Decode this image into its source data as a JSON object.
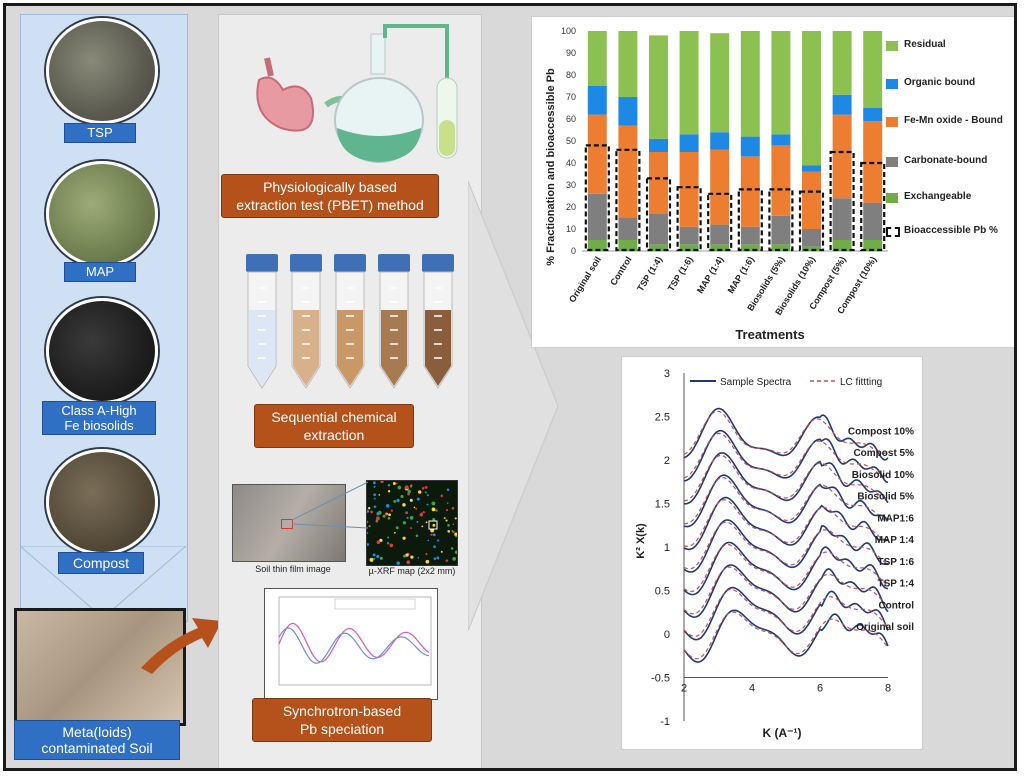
{
  "materials": {
    "tsp": "TSP",
    "map": "MAP",
    "biosolids_line1": "Class A-High",
    "biosolids_line2": "Fe biosolids",
    "compost": "Compost",
    "soil_line1": "Meta(loids)",
    "soil_line2": "contaminated Soil"
  },
  "methods": {
    "pbet_line1": "Physiologically based",
    "pbet_line2": "extraction test (PBET) method",
    "seq_line1": "Sequential chemical",
    "seq_line2": "extraction",
    "sync_line1": "Synchrotron-based",
    "sync_line2": "Pb speciation",
    "thin_film": "Soil thin film image",
    "xrf_map": "µ-XRF map (2x2 mm)"
  },
  "colors": {
    "residual": "#8cc152",
    "organic": "#1e88e5",
    "femn": "#ed7d31",
    "carbonate": "#7f7f7f",
    "exchangeable": "#70ad47",
    "spectra": "#1f3a7a",
    "fit": "#c0504d"
  },
  "chart_data": [
    {
      "type": "bar",
      "stacked": true,
      "xlabel": "Treatments",
      "ylabel": "% Fractionation and bioaccessible Pb",
      "ylim": [
        0,
        100
      ],
      "yticks": [
        0,
        10,
        20,
        30,
        40,
        50,
        60,
        70,
        80,
        90,
        100
      ],
      "categories": [
        "Original soil",
        "Control",
        "TSP (1:4)",
        "TSP (1:6)",
        "MAP (1:4)",
        "MAP (1:6)",
        "Biosolids (5%)",
        "Biosolids (10%)",
        "Compost (5%)",
        "Compost (10%)"
      ],
      "series": [
        {
          "name": "Exchangeable",
          "values": [
            5,
            5,
            3,
            3,
            3,
            3,
            3,
            2,
            5,
            5
          ]
        },
        {
          "name": "Carbonate-bound",
          "values": [
            21,
            10,
            14,
            8,
            9,
            8,
            13,
            8,
            19,
            17
          ]
        },
        {
          "name": "Fe-Mn oxide - Bound",
          "values": [
            36,
            42,
            28,
            34,
            34,
            32,
            32,
            26,
            38,
            37
          ]
        },
        {
          "name": "Organic bound",
          "values": [
            13,
            13,
            6,
            8,
            8,
            9,
            5,
            3,
            9,
            6
          ]
        },
        {
          "name": "Residual",
          "values": [
            25,
            30,
            47,
            47,
            45,
            48,
            47,
            61,
            29,
            35
          ]
        }
      ],
      "bioaccessible": {
        "name": "Bioaccessible Pb %",
        "values": [
          48,
          46,
          33,
          29,
          26,
          28,
          28,
          27,
          45,
          40
        ]
      }
    },
    {
      "type": "line",
      "xlabel": "K (A⁻¹)",
      "ylabel": "K² X(k)",
      "xlim": [
        2,
        8
      ],
      "ylim": [
        -1,
        3
      ],
      "xticks": [
        2,
        4,
        6,
        8
      ],
      "yticks": [
        -1,
        -0.5,
        0,
        0.5,
        1,
        1.5,
        2,
        2.5,
        3
      ],
      "legend": [
        "Sample Spectra",
        "LC fittting"
      ],
      "samples": [
        "Original soil",
        "Control",
        "TSP 1:4",
        "TSP 1:6",
        "MAP 1:4",
        "MAP1:6",
        "Biosolid 5%",
        "Biosolid 10%",
        "Compost 5%",
        "Compost 10%"
      ],
      "offsets": [
        0.0,
        0.25,
        0.5,
        0.75,
        1.0,
        1.25,
        1.5,
        1.75,
        2.0,
        2.25
      ]
    }
  ]
}
